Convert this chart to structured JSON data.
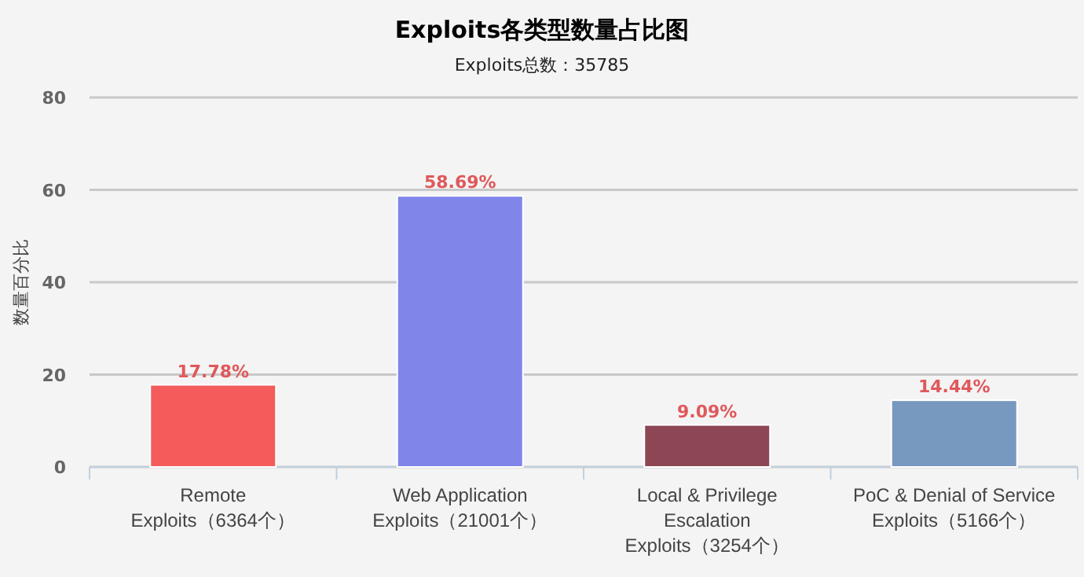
{
  "chart_data": {
    "type": "bar",
    "title": "Exploits各类型数量占比图",
    "subtitle": "Exploits总数：35785",
    "ylabel": "数量百分比",
    "categories": [
      "Remote Exploits（6364个）",
      "Web Application Exploits（21001个）",
      "Local & Privilege Escalation Exploits（3254个）",
      "PoC & Denial of Service Exploits（5166个）"
    ],
    "values": [
      17.78,
      58.69,
      9.09,
      14.44
    ],
    "colors": [
      "#f45b5b",
      "#7f85e9",
      "#8d4654",
      "#7798bf"
    ],
    "value_labels": [
      "17.78%",
      "58.69%",
      "9.09%",
      "14.44%"
    ],
    "ylim": [
      0,
      80
    ],
    "yticks": [
      0,
      20,
      40,
      60,
      80
    ],
    "grid": "y"
  }
}
